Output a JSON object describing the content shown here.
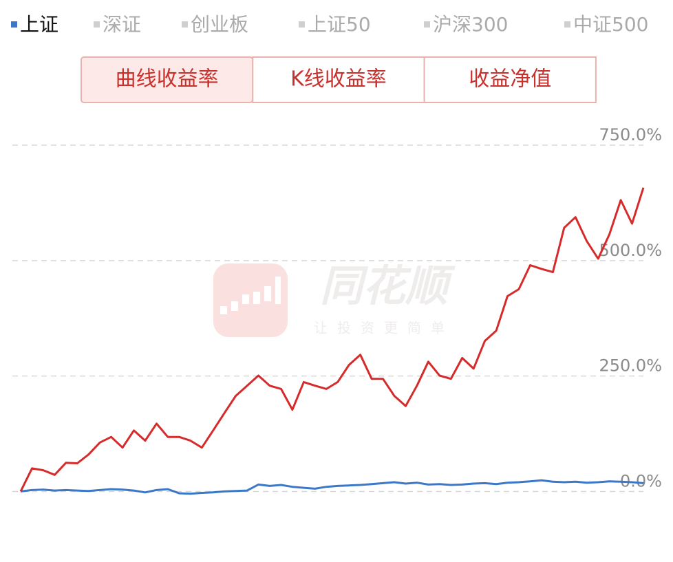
{
  "tabs": [
    {
      "label": "上证",
      "selected": true
    },
    {
      "label": "深证",
      "selected": false
    },
    {
      "label": "创业板",
      "selected": false
    },
    {
      "label": "上证50",
      "selected": false
    },
    {
      "label": "沪深300",
      "selected": false
    },
    {
      "label": "中证500",
      "selected": false
    }
  ],
  "buttons": [
    {
      "label": "曲线收益率",
      "selected": true
    },
    {
      "label": "K线收益率",
      "selected": false
    },
    {
      "label": "收益净值",
      "selected": false
    }
  ],
  "watermark": {
    "title": "同花顺",
    "slogan": "让投资更简单"
  },
  "chart_data": {
    "type": "line",
    "ylim": [
      -50,
      750
    ],
    "yticks": [
      {
        "value": 0,
        "label": "0.0%"
      },
      {
        "value": 250,
        "label": "250.0%"
      },
      {
        "value": 500,
        "label": "500.0%"
      },
      {
        "value": 750,
        "label": "750.0%"
      }
    ],
    "grid": true,
    "series": [
      {
        "color": "#d62b2b",
        "values": [
          0,
          50,
          46,
          36,
          62,
          61,
          80,
          106,
          118,
          95,
          132,
          110,
          147,
          118,
          118,
          110,
          95,
          132,
          170,
          207,
          229,
          251,
          229,
          222,
          177,
          237,
          229,
          222,
          237,
          274,
          296,
          244,
          244,
          207,
          185,
          229,
          281,
          251,
          244,
          289,
          266,
          326,
          348,
          423,
          438,
          490,
          482,
          475,
          571,
          594,
          542,
          504,
          557,
          631,
          580,
          658
        ]
      },
      {
        "color": "#3b78c8",
        "values": [
          0,
          3,
          4,
          2,
          3,
          2,
          1,
          3,
          5,
          4,
          2,
          -2,
          3,
          5,
          -4,
          -5,
          -3,
          -2,
          0,
          1,
          2,
          15,
          12,
          14,
          10,
          8,
          6,
          10,
          12,
          13,
          14,
          16,
          18,
          20,
          17,
          19,
          15,
          16,
          14,
          15,
          17,
          18,
          16,
          19,
          20,
          22,
          24,
          21,
          20,
          21,
          19,
          20,
          22,
          21,
          20,
          18
        ]
      }
    ]
  }
}
